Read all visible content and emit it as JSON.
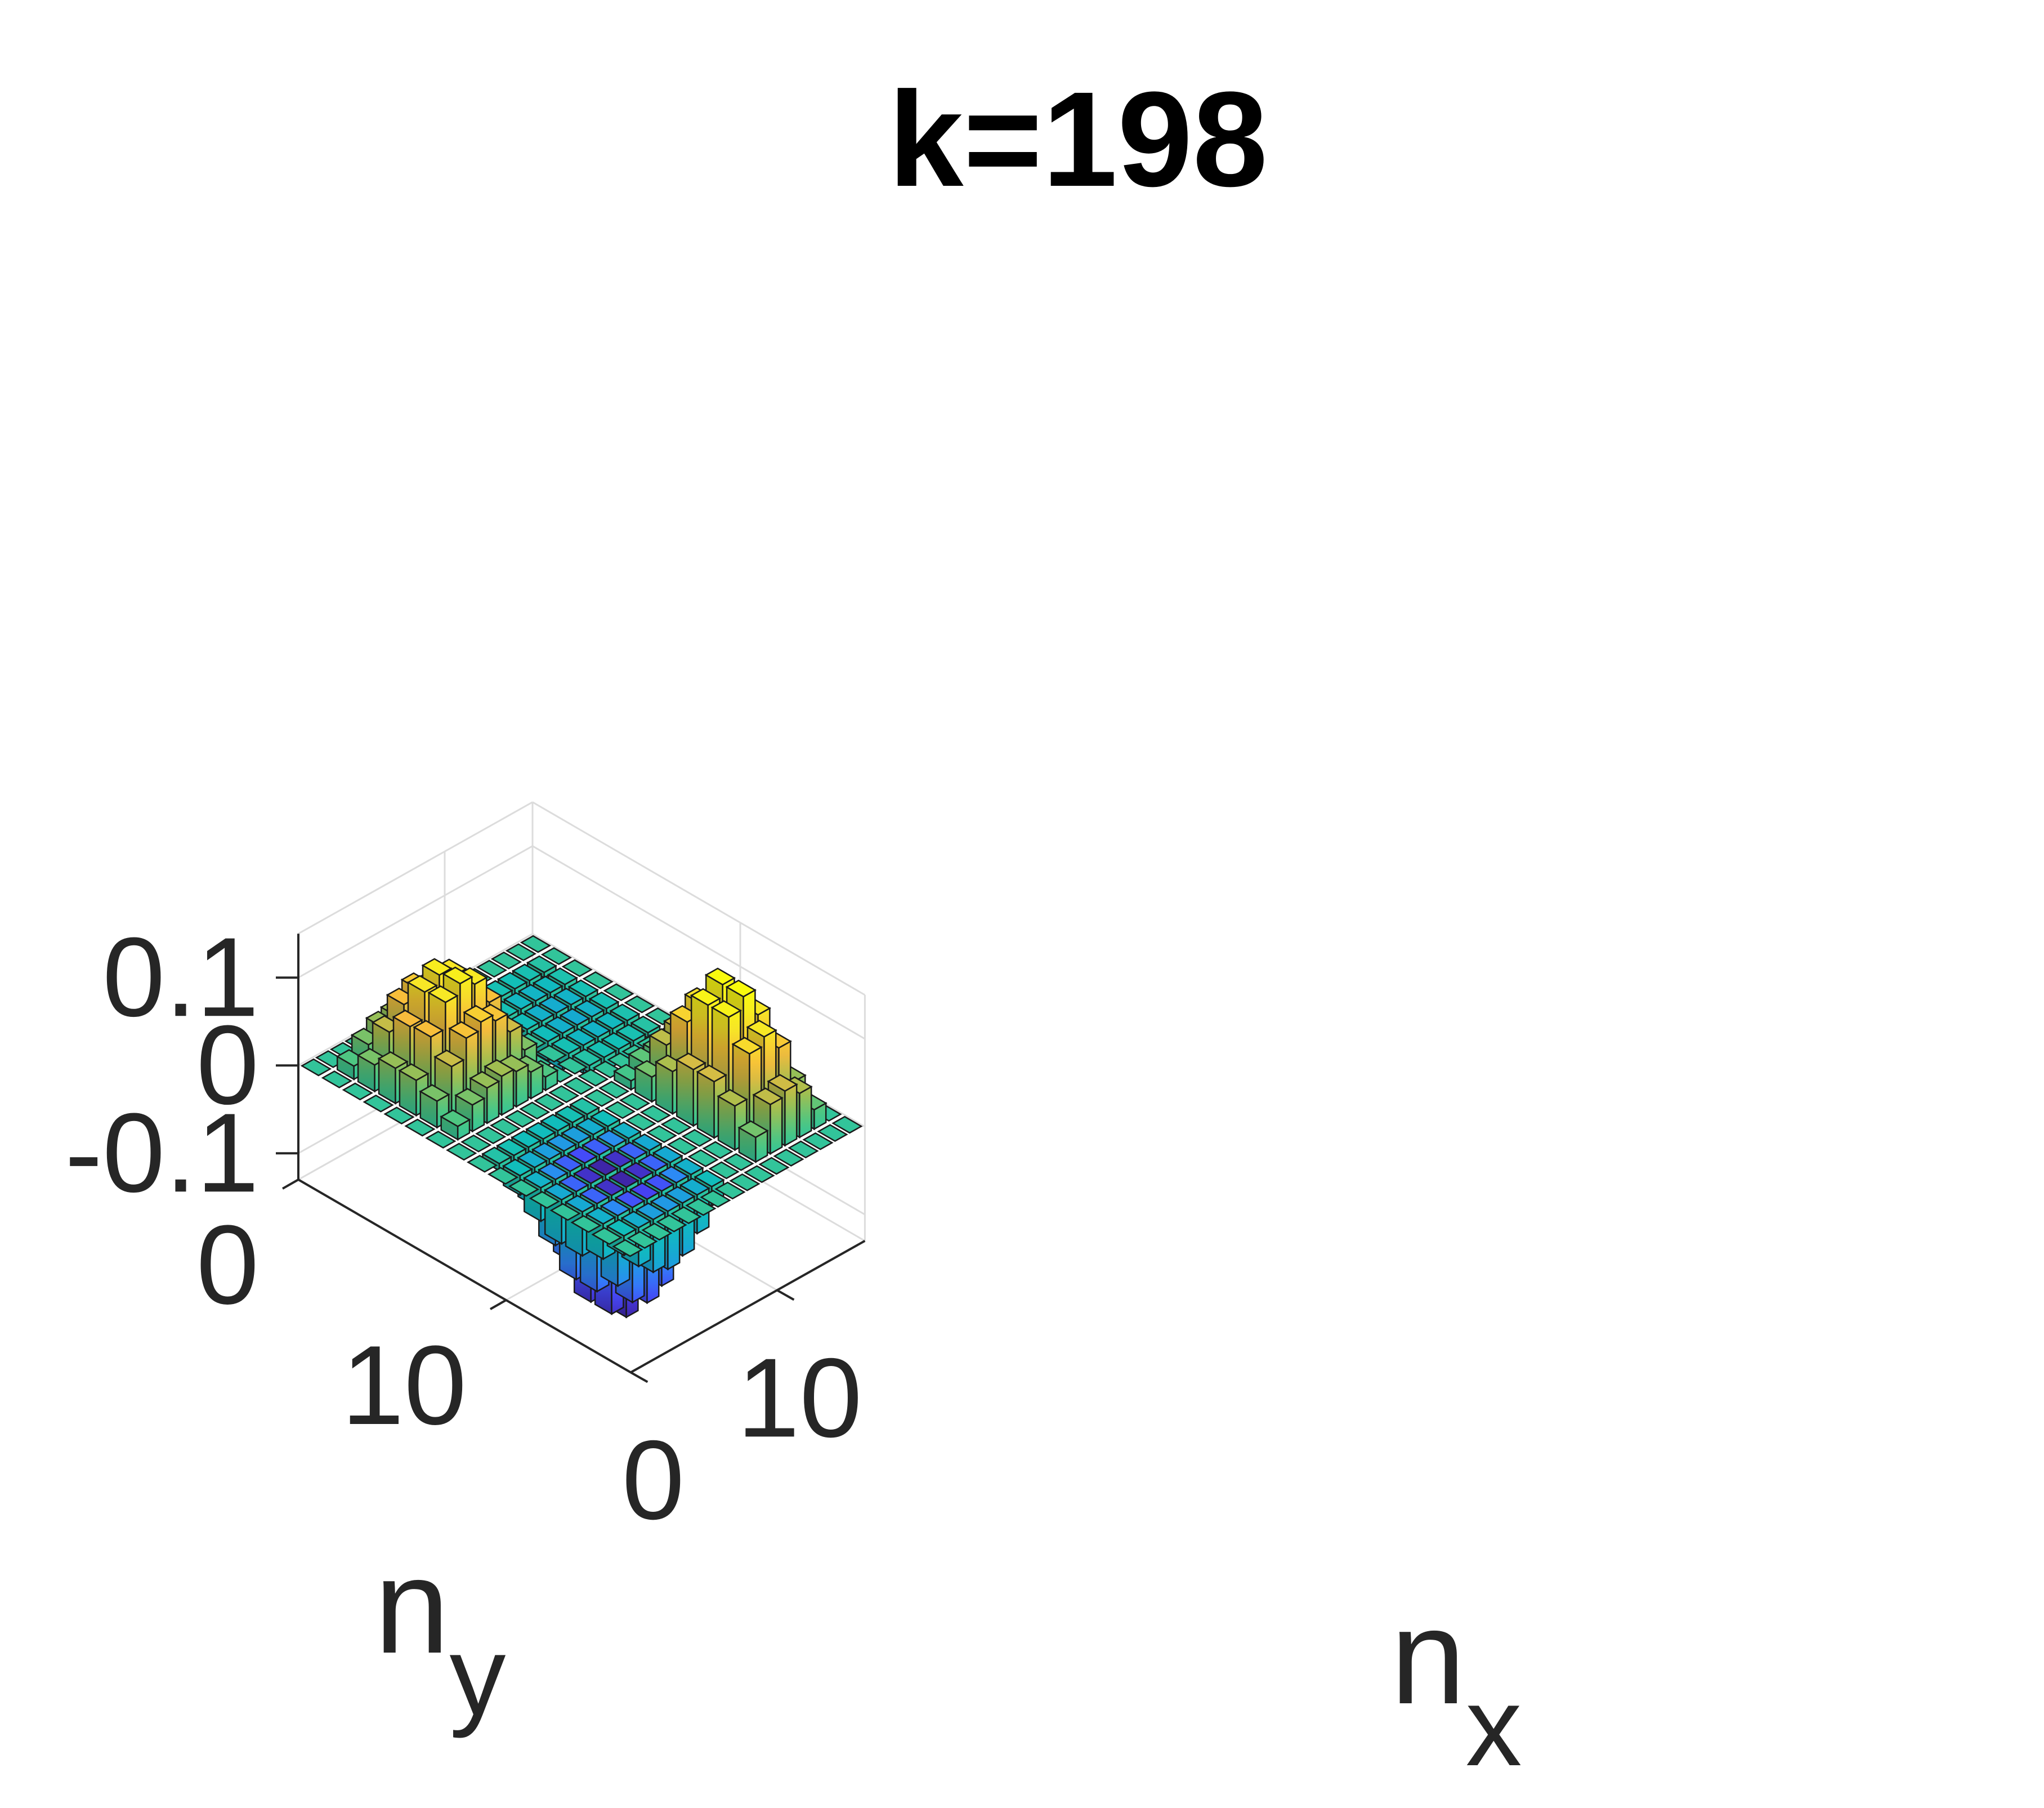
{
  "chart_data": {
    "type": "bar3",
    "title": "k=198",
    "xlabel": "n_x",
    "ylabel": "n_y",
    "zlabel": "",
    "x_ticks": [
      {
        "value": 0,
        "label": "0"
      },
      {
        "value": 10,
        "label": "10"
      }
    ],
    "y_ticks": [
      {
        "value": 0,
        "label": "0"
      },
      {
        "value": 10,
        "label": "10"
      }
    ],
    "z_ticks": [
      {
        "value": -0.1,
        "label": "-0.1"
      },
      {
        "value": 0,
        "label": "0"
      },
      {
        "value": 0.1,
        "label": "0.1"
      }
    ],
    "xlim": [
      0.5,
      16.5
    ],
    "ylim": [
      0.5,
      16.5
    ],
    "zlim": [
      -0.13,
      0.15
    ],
    "grid": true,
    "colormap": "parula",
    "colors": {
      "colormap_stops": [
        "#3E26A8",
        "#4743F8",
        "#2F86F8",
        "#16A8D3",
        "#10BFB9",
        "#49C785",
        "#A5BE4E",
        "#F7BB3C",
        "#F7E825",
        "#F9FB0E"
      ],
      "bar_edge": "#1a1a1a",
      "axis": "#262626",
      "grid": "#dcdcdc"
    },
    "grid_size": 16,
    "z_matrix_description": "z[i][j] where i is n_x index (1..16) and j is n_y index (1..16), reconstructed by reading bar heights",
    "z": [
      [
        0.0,
        0.0,
        0.0,
        0.0,
        0.0,
        0.0,
        0.0,
        0.0,
        0.0,
        0.0,
        0.0,
        0.0,
        0.0,
        0.0,
        0.0,
        0.0
      ],
      [
        0.0,
        0.015,
        0.03,
        0.04,
        0.04,
        0.03,
        0.015,
        0.0,
        -0.008,
        -0.022,
        -0.038,
        -0.05,
        -0.05,
        -0.04,
        -0.022,
        0.0
      ],
      [
        0.0,
        0.03,
        0.058,
        0.078,
        0.08,
        0.06,
        0.03,
        0.0,
        -0.016,
        -0.044,
        -0.075,
        -0.1,
        -0.1,
        -0.08,
        -0.044,
        0.0
      ],
      [
        0.0,
        0.04,
        0.08,
        0.108,
        0.11,
        0.083,
        0.04,
        0.0,
        -0.022,
        -0.06,
        -0.102,
        -0.135,
        -0.135,
        -0.108,
        -0.06,
        0.0
      ],
      [
        0.0,
        0.043,
        0.088,
        0.118,
        0.122,
        0.092,
        0.044,
        0.0,
        -0.024,
        -0.066,
        -0.112,
        -0.148,
        -0.148,
        -0.118,
        -0.066,
        0.0
      ],
      [
        0.0,
        0.04,
        0.08,
        0.108,
        0.112,
        0.084,
        0.04,
        0.0,
        -0.022,
        -0.06,
        -0.102,
        -0.135,
        -0.135,
        -0.108,
        -0.06,
        0.0
      ],
      [
        0.0,
        0.03,
        0.06,
        0.08,
        0.082,
        0.062,
        0.03,
        0.0,
        -0.016,
        -0.044,
        -0.075,
        -0.1,
        -0.1,
        -0.08,
        -0.044,
        0.0
      ],
      [
        0.0,
        0.015,
        0.03,
        0.04,
        0.042,
        0.032,
        0.015,
        0.0,
        -0.008,
        -0.022,
        -0.038,
        -0.05,
        -0.05,
        -0.04,
        -0.022,
        0.0
      ],
      [
        0.0,
        0.0,
        0.0,
        0.0,
        0.0,
        0.0,
        0.0,
        0.0,
        0.0,
        0.0,
        0.0,
        0.0,
        0.0,
        0.0,
        0.0,
        0.0
      ],
      [
        0.0,
        0.0,
        0.0,
        0.0,
        0.0,
        0.0,
        0.0,
        0.0,
        0.0,
        0.0,
        0.0,
        0.0,
        0.0,
        0.0,
        0.0,
        0.0
      ],
      [
        0.0,
        -0.008,
        -0.016,
        -0.022,
        -0.022,
        -0.016,
        -0.008,
        0.0,
        0.01,
        0.028,
        0.048,
        0.064,
        0.064,
        0.05,
        0.028,
        0.0
      ],
      [
        0.0,
        -0.016,
        -0.03,
        -0.04,
        -0.042,
        -0.032,
        -0.016,
        0.0,
        0.02,
        0.055,
        0.095,
        0.128,
        0.128,
        0.1,
        0.056,
        0.0
      ],
      [
        0.0,
        -0.018,
        -0.034,
        -0.046,
        -0.048,
        -0.036,
        -0.018,
        0.0,
        0.022,
        0.062,
        0.106,
        0.142,
        0.142,
        0.11,
        0.062,
        0.0
      ],
      [
        0.0,
        -0.014,
        -0.026,
        -0.036,
        -0.038,
        -0.028,
        -0.014,
        0.0,
        0.018,
        0.05,
        0.085,
        0.112,
        0.112,
        0.088,
        0.05,
        0.0
      ],
      [
        0.0,
        -0.006,
        -0.012,
        -0.016,
        -0.016,
        -0.012,
        -0.006,
        0.0,
        0.008,
        0.022,
        0.038,
        0.05,
        0.05,
        0.04,
        0.022,
        0.0
      ],
      [
        0.0,
        0.0,
        0.0,
        0.0,
        0.0,
        0.0,
        0.0,
        0.0,
        0.0,
        0.0,
        0.0,
        0.0,
        0.0,
        0.0,
        0.0,
        0.0
      ]
    ]
  }
}
